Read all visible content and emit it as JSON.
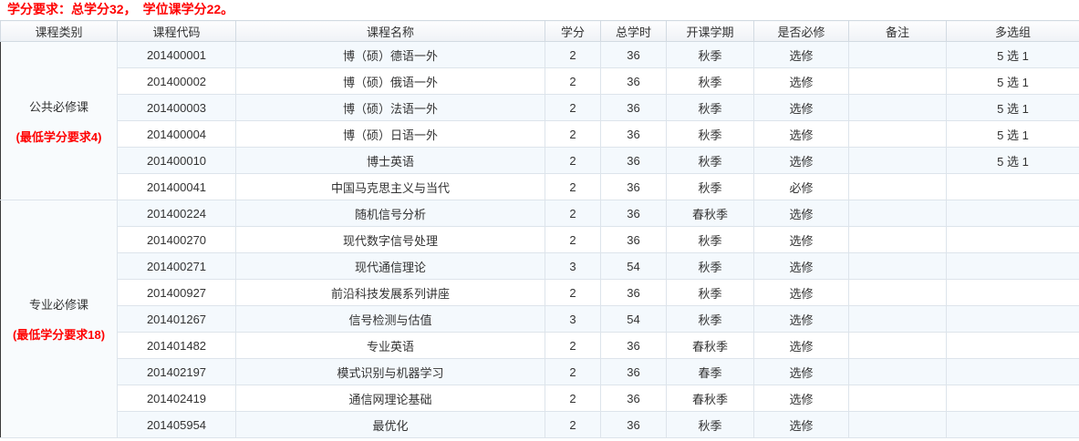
{
  "page": {
    "credit_note": "学分要求：总学分32，　学位课学分22。"
  },
  "colors": {
    "accent_red": "#ff0000",
    "row_stripe": "#f4f9fd",
    "cell_border": "#dde4eb",
    "left_edge": "#3a3a3a"
  },
  "table": {
    "headers": [
      "课程类别",
      "课程代码",
      "课程名称",
      "学分",
      "总学时",
      "开课学期",
      "是否必修",
      "备注",
      "多选组"
    ],
    "categories": [
      {
        "name": "公共必修课",
        "requirement": "(最低学分要求4)",
        "courses": [
          {
            "code": "201400001",
            "name": "博（硕）德语一外",
            "credits": "2",
            "hours": "36",
            "semester": "秋季",
            "required": "选修",
            "remark": "",
            "group": "5 选 1"
          },
          {
            "code": "201400002",
            "name": "博（硕）俄语一外",
            "credits": "2",
            "hours": "36",
            "semester": "秋季",
            "required": "选修",
            "remark": "",
            "group": "5 选 1"
          },
          {
            "code": "201400003",
            "name": "博（硕）法语一外",
            "credits": "2",
            "hours": "36",
            "semester": "秋季",
            "required": "选修",
            "remark": "",
            "group": "5 选 1"
          },
          {
            "code": "201400004",
            "name": "博（硕）日语一外",
            "credits": "2",
            "hours": "36",
            "semester": "秋季",
            "required": "选修",
            "remark": "",
            "group": "5 选 1"
          },
          {
            "code": "201400010",
            "name": "博士英语",
            "credits": "2",
            "hours": "36",
            "semester": "秋季",
            "required": "选修",
            "remark": "",
            "group": "5 选 1"
          },
          {
            "code": "201400041",
            "name": "中国马克思主义与当代",
            "credits": "2",
            "hours": "36",
            "semester": "秋季",
            "required": "必修",
            "remark": "",
            "group": ""
          }
        ]
      },
      {
        "name": "专业必修课",
        "requirement": "(最低学分要求18)",
        "courses": [
          {
            "code": "201400224",
            "name": "随机信号分析",
            "credits": "2",
            "hours": "36",
            "semester": "春秋季",
            "required": "选修",
            "remark": "",
            "group": ""
          },
          {
            "code": "201400270",
            "name": "现代数字信号处理",
            "credits": "2",
            "hours": "36",
            "semester": "秋季",
            "required": "选修",
            "remark": "",
            "group": ""
          },
          {
            "code": "201400271",
            "name": "现代通信理论",
            "credits": "3",
            "hours": "54",
            "semester": "秋季",
            "required": "选修",
            "remark": "",
            "group": ""
          },
          {
            "code": "201400927",
            "name": "前沿科技发展系列讲座",
            "credits": "2",
            "hours": "36",
            "semester": "秋季",
            "required": "选修",
            "remark": "",
            "group": ""
          },
          {
            "code": "201401267",
            "name": "信号检测与估值",
            "credits": "3",
            "hours": "54",
            "semester": "秋季",
            "required": "选修",
            "remark": "",
            "group": ""
          },
          {
            "code": "201401482",
            "name": "专业英语",
            "credits": "2",
            "hours": "36",
            "semester": "春秋季",
            "required": "选修",
            "remark": "",
            "group": ""
          },
          {
            "code": "201402197",
            "name": "模式识别与机器学习",
            "credits": "2",
            "hours": "36",
            "semester": "春季",
            "required": "选修",
            "remark": "",
            "group": ""
          },
          {
            "code": "201402419",
            "name": "通信网理论基础",
            "credits": "2",
            "hours": "36",
            "semester": "春秋季",
            "required": "选修",
            "remark": "",
            "group": ""
          },
          {
            "code": "201405954",
            "name": "最优化",
            "credits": "2",
            "hours": "36",
            "semester": "秋季",
            "required": "选修",
            "remark": "",
            "group": ""
          }
        ]
      }
    ]
  }
}
